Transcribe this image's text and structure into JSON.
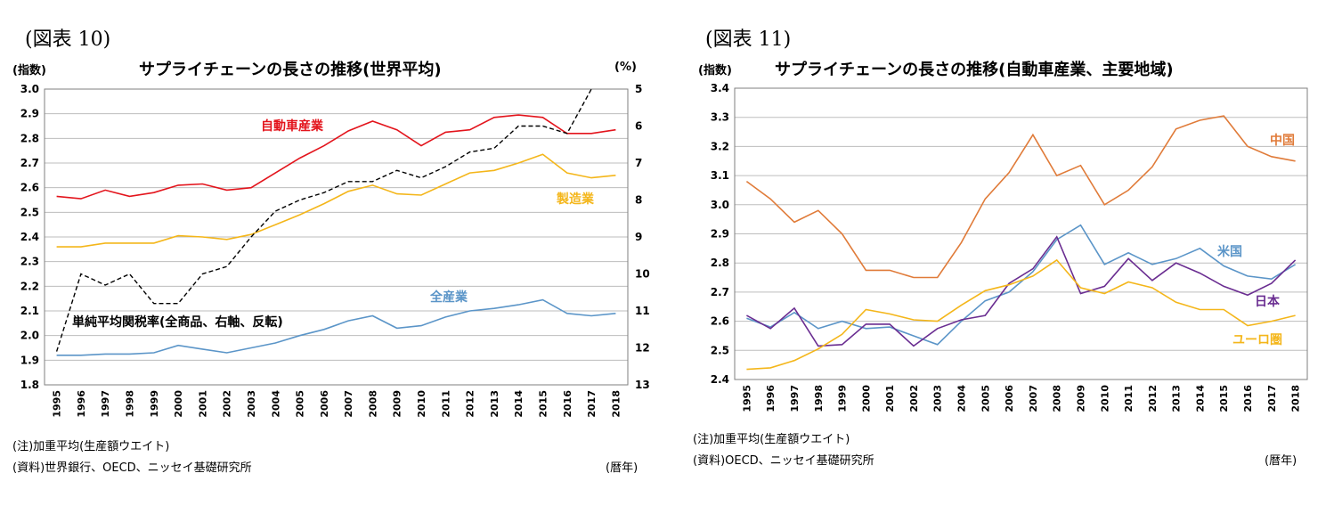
{
  "left": {
    "figure_label": "(図表 10)",
    "y_left_unit": "(指数)",
    "y_right_unit": "(%)",
    "title": "サプライチェーンの長さの推移(世界平均)",
    "note": "(注)加重平均(生産額ウエイト)",
    "source": "(資料)世界銀行、OECD、ニッセイ基礎研究所",
    "x_unit": "(暦年)"
  },
  "right": {
    "figure_label": "(図表 11)",
    "y_left_unit": "(指数)",
    "title": "サプライチェーンの長さの推移(自動車産業、主要地域)",
    "note": "(注)加重平均(生産額ウエイト)",
    "source": "(資料)OECD、ニッセイ基礎研究所",
    "x_unit": "(暦年)"
  },
  "colors": {
    "red": "#e3141c",
    "yellow": "#f4b61a",
    "blue": "#5b95c8",
    "orange": "#e07b39",
    "purple": "#6a2d91",
    "black": "#000000",
    "grid": "#bdbdbd"
  },
  "chart_data": [
    {
      "type": "line",
      "title": "サプライチェーンの長さの推移(世界平均)",
      "x": [
        "1995",
        "1996",
        "1997",
        "1998",
        "1999",
        "2000",
        "2001",
        "2002",
        "2003",
        "2004",
        "2005",
        "2006",
        "2007",
        "2008",
        "2009",
        "2010",
        "2011",
        "2012",
        "2013",
        "2014",
        "2015",
        "2016",
        "2017",
        "2018"
      ],
      "ylim": [
        1.8,
        3.0
      ],
      "yticks": [
        "1.8",
        "1.9",
        "2.0",
        "2.1",
        "2.2",
        "2.3",
        "2.4",
        "2.5",
        "2.6",
        "2.7",
        "2.8",
        "2.9",
        "3.0"
      ],
      "y2lim": [
        13,
        5
      ],
      "y2ticks": [
        "5",
        "6",
        "7",
        "8",
        "9",
        "10",
        "11",
        "12",
        "13"
      ],
      "grid": true,
      "series": [
        {
          "name": "自動車産業",
          "color": "#e3141c",
          "axis": "left",
          "style": "solid",
          "values": [
            2.565,
            2.555,
            2.59,
            2.565,
            2.58,
            2.61,
            2.615,
            2.59,
            2.6,
            2.66,
            2.72,
            2.77,
            2.83,
            2.87,
            2.835,
            2.77,
            2.825,
            2.835,
            2.885,
            2.895,
            2.885,
            2.82,
            2.82,
            2.835
          ]
        },
        {
          "name": "製造業",
          "color": "#f4b61a",
          "axis": "left",
          "style": "solid",
          "values": [
            2.36,
            2.36,
            2.375,
            2.375,
            2.375,
            2.405,
            2.4,
            2.39,
            2.41,
            2.45,
            2.49,
            2.535,
            2.585,
            2.61,
            2.575,
            2.57,
            2.615,
            2.66,
            2.67,
            2.7,
            2.735,
            2.66,
            2.64,
            2.65
          ]
        },
        {
          "name": "全産業",
          "color": "#5b95c8",
          "axis": "left",
          "style": "solid",
          "values": [
            1.92,
            1.92,
            1.925,
            1.925,
            1.93,
            1.96,
            1.945,
            1.93,
            1.95,
            1.97,
            2.0,
            2.025,
            2.06,
            2.08,
            2.03,
            2.04,
            2.075,
            2.1,
            2.11,
            2.125,
            2.145,
            2.09,
            2.08,
            2.09
          ]
        },
        {
          "name": "単純平均関税率(全商品、右軸、反転)",
          "color": "#000000",
          "axis": "right",
          "style": "dashed",
          "values": [
            12.1,
            10.0,
            10.3,
            10.0,
            10.8,
            10.8,
            10.0,
            9.8,
            9.0,
            8.3,
            8.0,
            7.8,
            7.5,
            7.5,
            7.2,
            7.4,
            7.1,
            6.7,
            6.6,
            6.0,
            6.0,
            6.2,
            5.0,
            null
          ]
        }
      ],
      "annotations": [
        {
          "text": "自動車産業",
          "color": "#e3141c"
        },
        {
          "text": "製造業",
          "color": "#f4b61a"
        },
        {
          "text": "全産業",
          "color": "#5b95c8"
        },
        {
          "text": "単純平均関税率(全商品、右軸、反転)",
          "color": "#000000"
        }
      ]
    },
    {
      "type": "line",
      "title": "サプライチェーンの長さの推移(自動車産業、主要地域)",
      "x": [
        "1995",
        "1996",
        "1997",
        "1998",
        "1999",
        "2000",
        "2001",
        "2002",
        "2003",
        "2004",
        "2005",
        "2006",
        "2007",
        "2008",
        "2009",
        "2010",
        "2011",
        "2012",
        "2013",
        "2014",
        "2015",
        "2016",
        "2017",
        "2018"
      ],
      "ylim": [
        2.4,
        3.4
      ],
      "yticks": [
        "2.4",
        "2.5",
        "2.6",
        "2.7",
        "2.8",
        "2.9",
        "3.0",
        "3.1",
        "3.2",
        "3.3",
        "3.4"
      ],
      "grid": true,
      "series": [
        {
          "name": "中国",
          "color": "#e07b39",
          "values": [
            3.08,
            3.02,
            2.94,
            2.98,
            2.9,
            2.775,
            2.775,
            2.75,
            2.75,
            2.87,
            3.02,
            3.11,
            3.24,
            3.1,
            3.135,
            3.0,
            3.05,
            3.13,
            3.26,
            3.29,
            3.305,
            3.2,
            3.165,
            3.15
          ]
        },
        {
          "name": "米国",
          "color": "#5b95c8",
          "values": [
            2.61,
            2.58,
            2.63,
            2.575,
            2.6,
            2.575,
            2.58,
            2.55,
            2.52,
            2.6,
            2.67,
            2.7,
            2.77,
            2.88,
            2.93,
            2.795,
            2.835,
            2.795,
            2.815,
            2.85,
            2.79,
            2.755,
            2.745,
            2.795
          ]
        },
        {
          "name": "日本",
          "color": "#6a2d91",
          "values": [
            2.62,
            2.575,
            2.645,
            2.515,
            2.52,
            2.59,
            2.59,
            2.515,
            2.575,
            2.605,
            2.62,
            2.73,
            2.78,
            2.89,
            2.695,
            2.72,
            2.815,
            2.74,
            2.8,
            2.765,
            2.72,
            2.69,
            2.73,
            2.81
          ]
        },
        {
          "name": "ユーロ圏",
          "color": "#f4b61a",
          "values": [
            2.435,
            2.44,
            2.465,
            2.505,
            2.555,
            2.64,
            2.625,
            2.605,
            2.6,
            2.655,
            2.705,
            2.725,
            2.755,
            2.81,
            2.715,
            2.695,
            2.735,
            2.715,
            2.665,
            2.64,
            2.64,
            2.585,
            2.6,
            2.62
          ]
        }
      ],
      "annotations": [
        {
          "text": "中国",
          "color": "#e07b39"
        },
        {
          "text": "米国",
          "color": "#5b95c8"
        },
        {
          "text": "日本",
          "color": "#6a2d91"
        },
        {
          "text": "ユーロ圏",
          "color": "#f4b61a"
        }
      ]
    }
  ]
}
